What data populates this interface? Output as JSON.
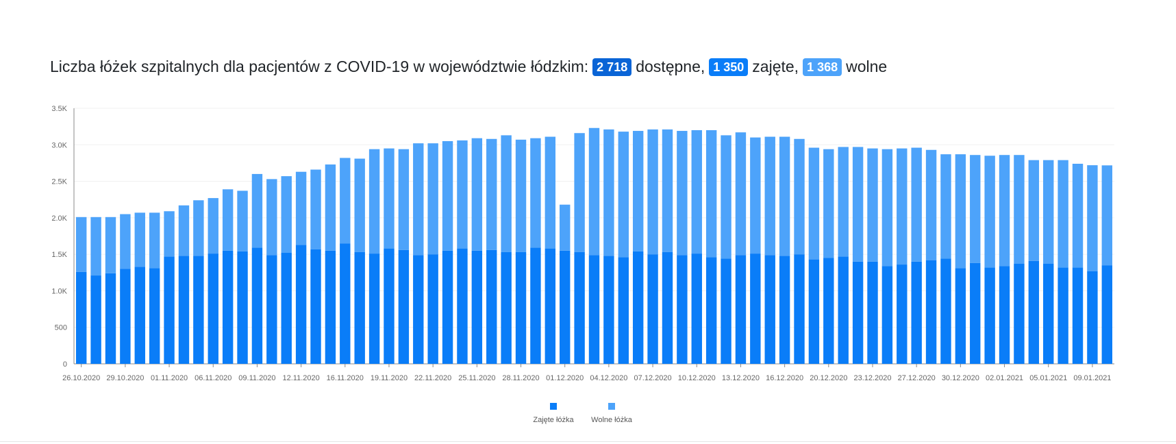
{
  "header": {
    "title_text": "Liczba łóżek szpitalnych dla pacjentów z COVID-19 w województwie łódzkim:",
    "available_value": "2 718",
    "available_label": "dostępne,",
    "occupied_value": "1 350",
    "occupied_label": "zajęte,",
    "free_value": "1 368",
    "free_label": "wolne"
  },
  "colors": {
    "occupied": "#0a7df8",
    "free": "#4da3fa",
    "badge_available": "#0a64d6",
    "badge_occupied": "#0a7df8",
    "badge_free": "#4da3fa"
  },
  "chart_data": {
    "type": "bar",
    "stacked": true,
    "title": "",
    "xlabel": "",
    "ylabel": "",
    "ylim": [
      0,
      3500
    ],
    "y_ticks": [
      0,
      500,
      1000,
      1500,
      2000,
      2500,
      3000,
      3500
    ],
    "y_tick_labels": [
      "0",
      "500",
      "1.0K",
      "1.5K",
      "2.0K",
      "2.5K",
      "3.0K",
      "3.5K"
    ],
    "x_tick_labels": [
      "26.10.2020",
      "29.10.2020",
      "01.11.2020",
      "06.11.2020",
      "09.11.2020",
      "12.11.2020",
      "16.11.2020",
      "19.11.2020",
      "22.11.2020",
      "25.11.2020",
      "28.11.2020",
      "01.12.2020",
      "04.12.2020",
      "07.12.2020",
      "10.12.2020",
      "13.12.2020",
      "16.12.2020",
      "20.12.2020",
      "23.12.2020",
      "27.12.2020",
      "30.12.2020",
      "02.01.2021",
      "05.01.2021",
      "09.01.2021"
    ],
    "legend_position": "bottom",
    "grid": true,
    "series": [
      {
        "name": "Zajęte łóżka",
        "values": [
          1260,
          1210,
          1240,
          1300,
          1330,
          1310,
          1470,
          1480,
          1480,
          1510,
          1550,
          1540,
          1590,
          1490,
          1520,
          1630,
          1570,
          1550,
          1650,
          1530,
          1510,
          1580,
          1560,
          1490,
          1500,
          1550,
          1580,
          1550,
          1560,
          1530,
          1530,
          1590,
          1580,
          1550,
          1530,
          1490,
          1480,
          1460,
          1540,
          1500,
          1530,
          1490,
          1510,
          1460,
          1440,
          1490,
          1510,
          1490,
          1480,
          1500,
          1430,
          1450,
          1470,
          1400,
          1400,
          1340,
          1360,
          1400,
          1420,
          1440,
          1310,
          1380,
          1320,
          1340,
          1370,
          1410,
          1370,
          1320,
          1320,
          1270,
          1350
        ]
      },
      {
        "name": "Wolne łóżka",
        "values": [
          750,
          800,
          770,
          750,
          740,
          760,
          620,
          690,
          760,
          760,
          840,
          830,
          1010,
          1040,
          1050,
          1000,
          1090,
          1180,
          1170,
          1280,
          1430,
          1370,
          1380,
          1530,
          1520,
          1500,
          1480,
          1540,
          1520,
          1600,
          1540,
          1500,
          1530,
          630,
          1630,
          1740,
          1730,
          1720,
          1650,
          1710,
          1680,
          1700,
          1690,
          1740,
          1690,
          1680,
          1590,
          1620,
          1630,
          1580,
          1530,
          1490,
          1500,
          1570,
          1550,
          1600,
          1590,
          1560,
          1510,
          1430,
          1560,
          1480,
          1530,
          1520,
          1490,
          1380,
          1420,
          1470,
          1420,
          1450,
          1368
        ]
      }
    ]
  }
}
